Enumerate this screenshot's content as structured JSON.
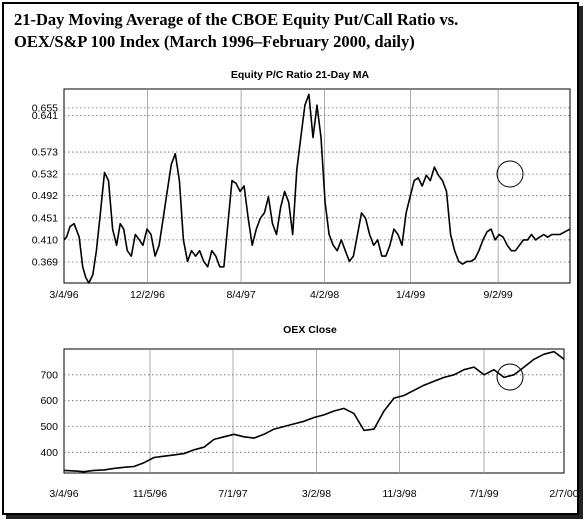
{
  "figure": {
    "title_line1": "21-Day Moving Average of the CBOE Equity Put/Call Ratio vs.",
    "title_line2": "OEX/S&P 100 Index (March 1996–February 2000, daily)"
  },
  "chart_data": [
    {
      "type": "line",
      "title": "Equity P/C Ratio 21-Day MA",
      "xlabel": "",
      "ylabel": "",
      "x_tick_labels": [
        "3/4/96",
        "12/2/96",
        "8/4/97",
        "4/2/98",
        "1/4/99",
        "9/2/99"
      ],
      "y_tick_labels": [
        "0.655",
        "0.641",
        "0.573",
        "0.532",
        "0.492",
        "0.451",
        "0.410",
        "0.369"
      ],
      "ylim": [
        0.33,
        0.69
      ],
      "x_range": [
        0,
        1
      ],
      "grid": "dotted horizontal, solid vertical",
      "annotation": "circle around the late-1999 peak",
      "series": [
        {
          "x": [
            0,
            0.005,
            0.012,
            0.02,
            0.03,
            0.037,
            0.043,
            0.049,
            0.057,
            0.064,
            0.072,
            0.08,
            0.088,
            0.096,
            0.104,
            0.111,
            0.118,
            0.125,
            0.133,
            0.141,
            0.149,
            0.156,
            0.164,
            0.172,
            0.18,
            0.188,
            0.196,
            0.204,
            0.212,
            0.22,
            0.228,
            0.236,
            0.244,
            0.252,
            0.26,
            0.268,
            0.276,
            0.284,
            0.292,
            0.3,
            0.308,
            0.316,
            0.324,
            0.332,
            0.34,
            0.348,
            0.356,
            0.364,
            0.372,
            0.38,
            0.388,
            0.396,
            0.404,
            0.412,
            0.42,
            0.428,
            0.436,
            0.444,
            0.452,
            0.46,
            0.468,
            0.476,
            0.484,
            0.492,
            0.5,
            0.508,
            0.516,
            0.524,
            0.532,
            0.54,
            0.548,
            0.556,
            0.564,
            0.572,
            0.58,
            0.588,
            0.596,
            0.604,
            0.612,
            0.62,
            0.628,
            0.636,
            0.644,
            0.652,
            0.66,
            0.668,
            0.676,
            0.684,
            0.692,
            0.7,
            0.708,
            0.716,
            0.724,
            0.732,
            0.74,
            0.748,
            0.756,
            0.764,
            0.772,
            0.78,
            0.788,
            0.796,
            0.804,
            0.812,
            0.82,
            0.828,
            0.836,
            0.844,
            0.852,
            0.86,
            0.868,
            0.876,
            0.884,
            0.892,
            0.9,
            0.908,
            0.916,
            0.924,
            0.932,
            0.94,
            0.948,
            0.956,
            0.964,
            0.972,
            0.98,
            0.99,
            1
          ],
          "values": [
            0.41,
            0.415,
            0.435,
            0.44,
            0.415,
            0.36,
            0.34,
            0.33,
            0.345,
            0.39,
            0.46,
            0.535,
            0.52,
            0.43,
            0.4,
            0.44,
            0.43,
            0.39,
            0.38,
            0.42,
            0.41,
            0.4,
            0.43,
            0.42,
            0.38,
            0.4,
            0.45,
            0.5,
            0.55,
            0.57,
            0.52,
            0.41,
            0.37,
            0.39,
            0.38,
            0.39,
            0.37,
            0.36,
            0.39,
            0.38,
            0.36,
            0.36,
            0.44,
            0.52,
            0.515,
            0.5,
            0.51,
            0.45,
            0.4,
            0.43,
            0.45,
            0.46,
            0.49,
            0.44,
            0.42,
            0.47,
            0.5,
            0.48,
            0.42,
            0.54,
            0.6,
            0.66,
            0.68,
            0.6,
            0.66,
            0.6,
            0.48,
            0.42,
            0.4,
            0.39,
            0.41,
            0.39,
            0.37,
            0.38,
            0.42,
            0.46,
            0.45,
            0.42,
            0.4,
            0.41,
            0.38,
            0.38,
            0.4,
            0.43,
            0.42,
            0.4,
            0.46,
            0.49,
            0.52,
            0.525,
            0.51,
            0.53,
            0.52,
            0.545,
            0.53,
            0.52,
            0.5,
            0.42,
            0.39,
            0.37,
            0.365,
            0.37,
            0.37,
            0.375,
            0.39,
            0.41,
            0.425,
            0.43,
            0.41,
            0.42,
            0.415,
            0.4,
            0.39,
            0.39,
            0.4,
            0.41,
            0.41,
            0.42,
            0.41,
            0.415,
            0.42,
            0.415,
            0.42,
            0.42,
            0.42,
            0.425,
            0.43
          ]
        }
      ]
    },
    {
      "type": "line",
      "title": "OEX Close",
      "xlabel": "",
      "ylabel": "",
      "x_tick_labels": [
        "3/4/96",
        "11/5/96",
        "7/1/97",
        "3/2/98",
        "11/3/98",
        "7/1/99",
        "2/7/00"
      ],
      "y_tick_labels": [
        "700",
        "600",
        "500",
        "400"
      ],
      "ylim": [
        320,
        800
      ],
      "x_range": [
        0,
        1
      ],
      "grid": "dotted horizontal, solid vertical",
      "annotation": "circle around the late-1999 dip",
      "series": [
        {
          "x": [
            0,
            0.02,
            0.04,
            0.06,
            0.08,
            0.1,
            0.12,
            0.14,
            0.16,
            0.18,
            0.2,
            0.22,
            0.24,
            0.26,
            0.28,
            0.3,
            0.32,
            0.34,
            0.36,
            0.38,
            0.4,
            0.42,
            0.44,
            0.46,
            0.48,
            0.5,
            0.52,
            0.54,
            0.56,
            0.58,
            0.6,
            0.62,
            0.64,
            0.66,
            0.68,
            0.7,
            0.72,
            0.74,
            0.76,
            0.78,
            0.8,
            0.82,
            0.84,
            0.86,
            0.88,
            0.9,
            0.92,
            0.94,
            0.96,
            0.98,
            1
          ],
          "values": [
            330,
            328,
            325,
            330,
            332,
            338,
            342,
            345,
            360,
            380,
            385,
            390,
            395,
            410,
            420,
            450,
            460,
            470,
            460,
            455,
            470,
            490,
            500,
            510,
            520,
            535,
            545,
            560,
            570,
            550,
            485,
            490,
            560,
            610,
            620,
            640,
            660,
            675,
            690,
            700,
            720,
            730,
            700,
            720,
            690,
            700,
            730,
            760,
            780,
            790,
            760
          ]
        }
      ]
    }
  ]
}
